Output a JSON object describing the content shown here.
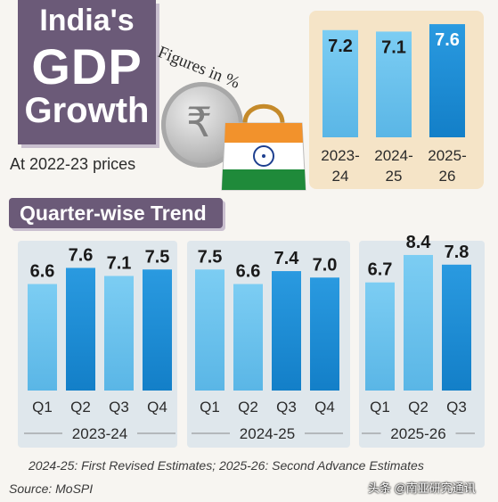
{
  "title": {
    "line1": "India's",
    "line2": "GDP",
    "line3": "Growth"
  },
  "subtitle": "At 2022-23 prices",
  "figures_note": "Figures in %",
  "section_title": "Quarter-wise Trend",
  "footnote": "2024-25: First Revised Estimates;  2025-26: Second Advance Estimates",
  "source": "Source: MoSPI",
  "watermark": "头条 @南亚研究通讯",
  "colors": {
    "title_bg": "#6b5a78",
    "annual_panel_bg": "#f5e4c7",
    "quarter_panel_bg": "#dfe7ec",
    "bar_light": "#78c7ee",
    "bar_dark": "#1c8fd6"
  },
  "chart_data": [
    {
      "type": "bar",
      "categories": [
        "2023-24",
        "2024-25",
        "2025-26"
      ],
      "values": [
        7.2,
        7.1,
        7.6
      ],
      "title": "",
      "xlabel": "",
      "ylabel": "",
      "ylim": [
        0,
        8
      ]
    },
    {
      "type": "bar",
      "groups": [
        {
          "label": "2023-24",
          "categories": [
            "Q1",
            "Q2",
            "Q3",
            "Q4"
          ],
          "values": [
            6.6,
            7.6,
            7.1,
            7.5
          ]
        },
        {
          "label": "2024-25",
          "categories": [
            "Q1",
            "Q2",
            "Q3",
            "Q4"
          ],
          "values": [
            7.5,
            6.6,
            7.4,
            7.0
          ]
        },
        {
          "label": "2025-26",
          "categories": [
            "Q1",
            "Q2",
            "Q3"
          ],
          "values": [
            6.7,
            8.4,
            7.8
          ]
        }
      ],
      "title": "",
      "xlabel": "",
      "ylabel": "",
      "ylim": [
        0,
        9
      ]
    }
  ]
}
